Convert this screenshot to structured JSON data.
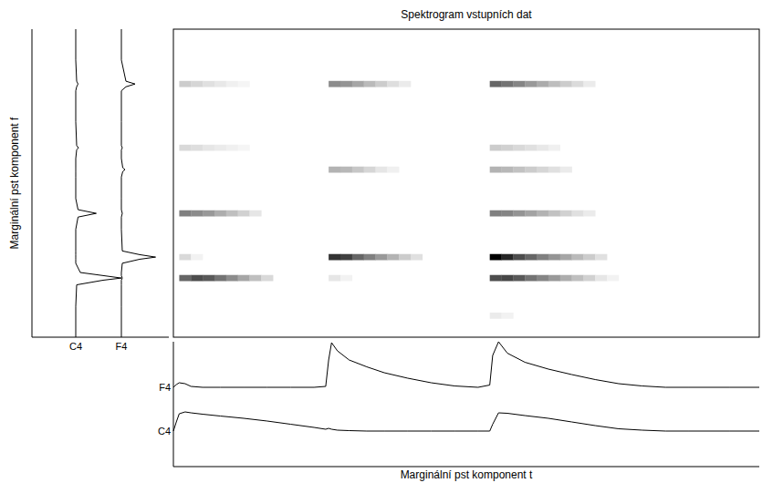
{
  "chart_data": [
    {
      "type": "heatmap",
      "title": "Spektrogram vstupních dat",
      "xlim": [
        0,
        100
      ],
      "ylim": [
        0,
        100
      ],
      "zlim": [
        0,
        1
      ],
      "tick_labels": false,
      "t_step": 2,
      "f_height": 2,
      "streaks": [
        {
          "f": 19.2,
          "t_start": 1,
          "values": [
            0.6,
            0.7,
            0.65,
            0.55,
            0.45,
            0.35,
            0.25,
            0.15
          ]
        },
        {
          "f": 26.0,
          "t_start": 1,
          "values": [
            0.15,
            0.05
          ]
        },
        {
          "f": 40.2,
          "t_start": 1,
          "values": [
            0.5,
            0.45,
            0.4,
            0.32,
            0.25,
            0.18,
            0.1
          ]
        },
        {
          "f": 61.5,
          "t_start": 1,
          "values": [
            0.15,
            0.13,
            0.1,
            0.08,
            0.06,
            0.04
          ]
        },
        {
          "f": 82.2,
          "t_start": 1,
          "values": [
            0.2,
            0.16,
            0.12,
            0.09,
            0.06,
            0.04
          ]
        },
        {
          "f": 19.2,
          "t_start": 26.5,
          "values": [
            0.1,
            0.05
          ]
        },
        {
          "f": 26.0,
          "t_start": 26.5,
          "values": [
            0.8,
            0.75,
            0.6,
            0.5,
            0.4,
            0.3,
            0.2,
            0.12
          ]
        },
        {
          "f": 54.4,
          "t_start": 26.5,
          "values": [
            0.3,
            0.28,
            0.22,
            0.16,
            0.1,
            0.06
          ]
        },
        {
          "f": 82.2,
          "t_start": 26.5,
          "values": [
            0.45,
            0.42,
            0.35,
            0.27,
            0.2,
            0.13,
            0.08
          ]
        },
        {
          "f": 7.0,
          "t_start": 54,
          "values": [
            0.08,
            0.05
          ]
        },
        {
          "f": 19.2,
          "t_start": 54,
          "values": [
            0.7,
            0.72,
            0.65,
            0.55,
            0.48,
            0.4,
            0.32,
            0.25,
            0.18,
            0.1,
            0.05
          ]
        },
        {
          "f": 26.0,
          "t_start": 54,
          "values": [
            1.0,
            0.85,
            0.7,
            0.6,
            0.5,
            0.42,
            0.35,
            0.27,
            0.2,
            0.12
          ]
        },
        {
          "f": 40.2,
          "t_start": 54,
          "values": [
            0.5,
            0.48,
            0.42,
            0.36,
            0.3,
            0.24,
            0.18,
            0.12,
            0.08
          ]
        },
        {
          "f": 54.4,
          "t_start": 54,
          "values": [
            0.3,
            0.28,
            0.24,
            0.2,
            0.16,
            0.12,
            0.08
          ]
        },
        {
          "f": 61.5,
          "t_start": 54,
          "values": [
            0.2,
            0.18,
            0.15,
            0.12,
            0.09,
            0.06
          ]
        },
        {
          "f": 82.2,
          "t_start": 54,
          "values": [
            0.6,
            0.55,
            0.48,
            0.4,
            0.33,
            0.26,
            0.2,
            0.14,
            0.08
          ]
        }
      ]
    },
    {
      "type": "line",
      "y_label": "Marginální pst komponent f",
      "color": "#000000",
      "ylim": [
        0,
        100
      ],
      "xlim": [
        0,
        1
      ],
      "tick_labels": "x",
      "y": [
        0,
        10,
        17,
        18.5,
        19.2,
        20,
        21,
        24,
        25.3,
        26,
        26.8,
        28,
        35,
        39,
        40.2,
        41.4,
        45,
        52,
        53.8,
        54.4,
        55,
        58,
        60.8,
        61.5,
        62.2,
        70,
        80,
        81.3,
        82.2,
        83.1,
        90,
        100
      ],
      "series": [
        {
          "name": "C4",
          "values": [
            0,
            0,
            0.02,
            0.6,
            1.0,
            0.6,
            0.1,
            0,
            0,
            0,
            0,
            0,
            0,
            0.05,
            0.45,
            0.05,
            0,
            0,
            0,
            0,
            0,
            0,
            0.02,
            0.06,
            0.02,
            0,
            0,
            0.02,
            0.05,
            0.02,
            0,
            0
          ]
        },
        {
          "name": "F4",
          "values": [
            0,
            0,
            0,
            0,
            0.02,
            0,
            0,
            0.02,
            0.4,
            0.75,
            0.4,
            0.02,
            0,
            0,
            0.02,
            0,
            0,
            0,
            0.03,
            0.08,
            0.03,
            0,
            0,
            0.02,
            0,
            0,
            0,
            0.1,
            0.3,
            0.1,
            0,
            0
          ]
        }
      ]
    },
    {
      "type": "line",
      "x_label": "Marginální pst komponent t",
      "color": "#000000",
      "xlim": [
        0,
        100
      ],
      "ylim": [
        0,
        1
      ],
      "tick_labels": "y",
      "x": [
        0,
        0.5,
        1,
        2,
        3,
        5,
        8,
        12,
        16,
        20,
        24,
        26,
        26.5,
        27,
        28,
        30,
        33,
        36,
        40,
        44,
        48,
        52,
        54,
        54.5,
        55.5,
        57,
        60,
        64,
        68,
        72,
        76,
        80,
        84,
        88,
        95,
        100
      ],
      "series": [
        {
          "name": "C4",
          "values": [
            0,
            0.2,
            0.38,
            0.42,
            0.4,
            0.37,
            0.33,
            0.28,
            0.22,
            0.15,
            0.08,
            0.04,
            0.06,
            0.04,
            0.02,
            0.01,
            0,
            0,
            0,
            0,
            0,
            0,
            0,
            0.15,
            0.4,
            0.39,
            0.34,
            0.28,
            0.2,
            0.12,
            0.05,
            0.02,
            0,
            0,
            0,
            0
          ]
        },
        {
          "name": "F4",
          "values": [
            0,
            0.06,
            0.1,
            0.08,
            0.02,
            0,
            0,
            0,
            0,
            0,
            0,
            0.02,
            0.6,
            0.98,
            0.8,
            0.6,
            0.45,
            0.32,
            0.2,
            0.1,
            0.03,
            0,
            0.05,
            0.7,
            1.0,
            0.75,
            0.55,
            0.4,
            0.28,
            0.17,
            0.08,
            0.03,
            0,
            0,
            0,
            0
          ]
        }
      ]
    }
  ]
}
